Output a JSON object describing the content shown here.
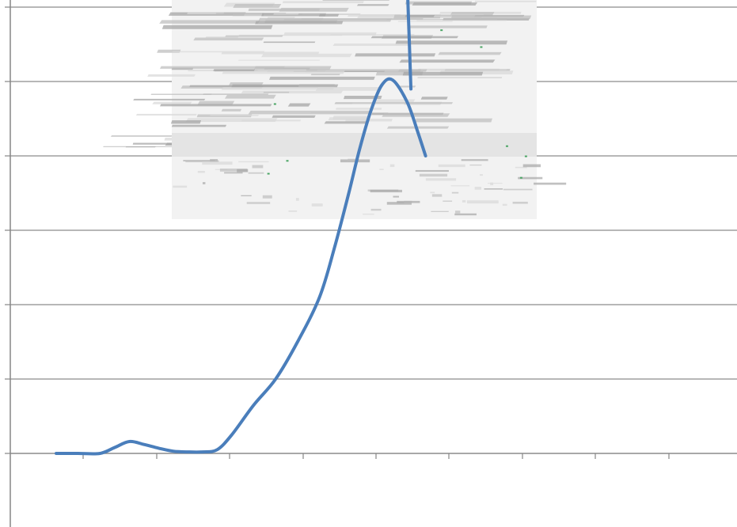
{
  "chart_data": {
    "type": "line",
    "title": "",
    "xlabel": "",
    "ylabel": "",
    "grid": true,
    "legend": "none",
    "xlim": [
      -0.3,
      9.1
    ],
    "ylim": [
      -1,
      6
    ],
    "x_tick_count": 9,
    "series": [
      {
        "color": "#4a7ebb",
        "points": [
          [
            0.0,
            0.0
          ],
          [
            0.3,
            0.0
          ],
          [
            0.6,
            0.0
          ],
          [
            0.8,
            0.08
          ],
          [
            1.0,
            0.16
          ],
          [
            1.2,
            0.12
          ],
          [
            1.4,
            0.07
          ],
          [
            1.6,
            0.03
          ],
          [
            1.8,
            0.02
          ],
          [
            2.0,
            0.02
          ],
          [
            2.2,
            0.05
          ],
          [
            2.4,
            0.25
          ],
          [
            2.7,
            0.65
          ],
          [
            3.0,
            1.0
          ],
          [
            3.3,
            1.5
          ],
          [
            3.6,
            2.1
          ],
          [
            3.8,
            2.75
          ],
          [
            4.0,
            3.5
          ],
          [
            4.15,
            4.1
          ],
          [
            4.3,
            4.6
          ],
          [
            4.45,
            4.95
          ],
          [
            4.6,
            5.02
          ],
          [
            4.8,
            4.72
          ],
          [
            4.95,
            4.3
          ],
          [
            5.05,
            4.0
          ]
        ]
      },
      {
        "color": "#4a7ebb",
        "points": [
          [
            4.85,
            4.9
          ],
          [
            4.8,
            6.3
          ]
        ]
      }
    ],
    "inset_image": {
      "description": "",
      "colors": [
        "#d9d9d9",
        "#bfbfbf",
        "#a6a6a6",
        "#4aa564"
      ]
    }
  }
}
